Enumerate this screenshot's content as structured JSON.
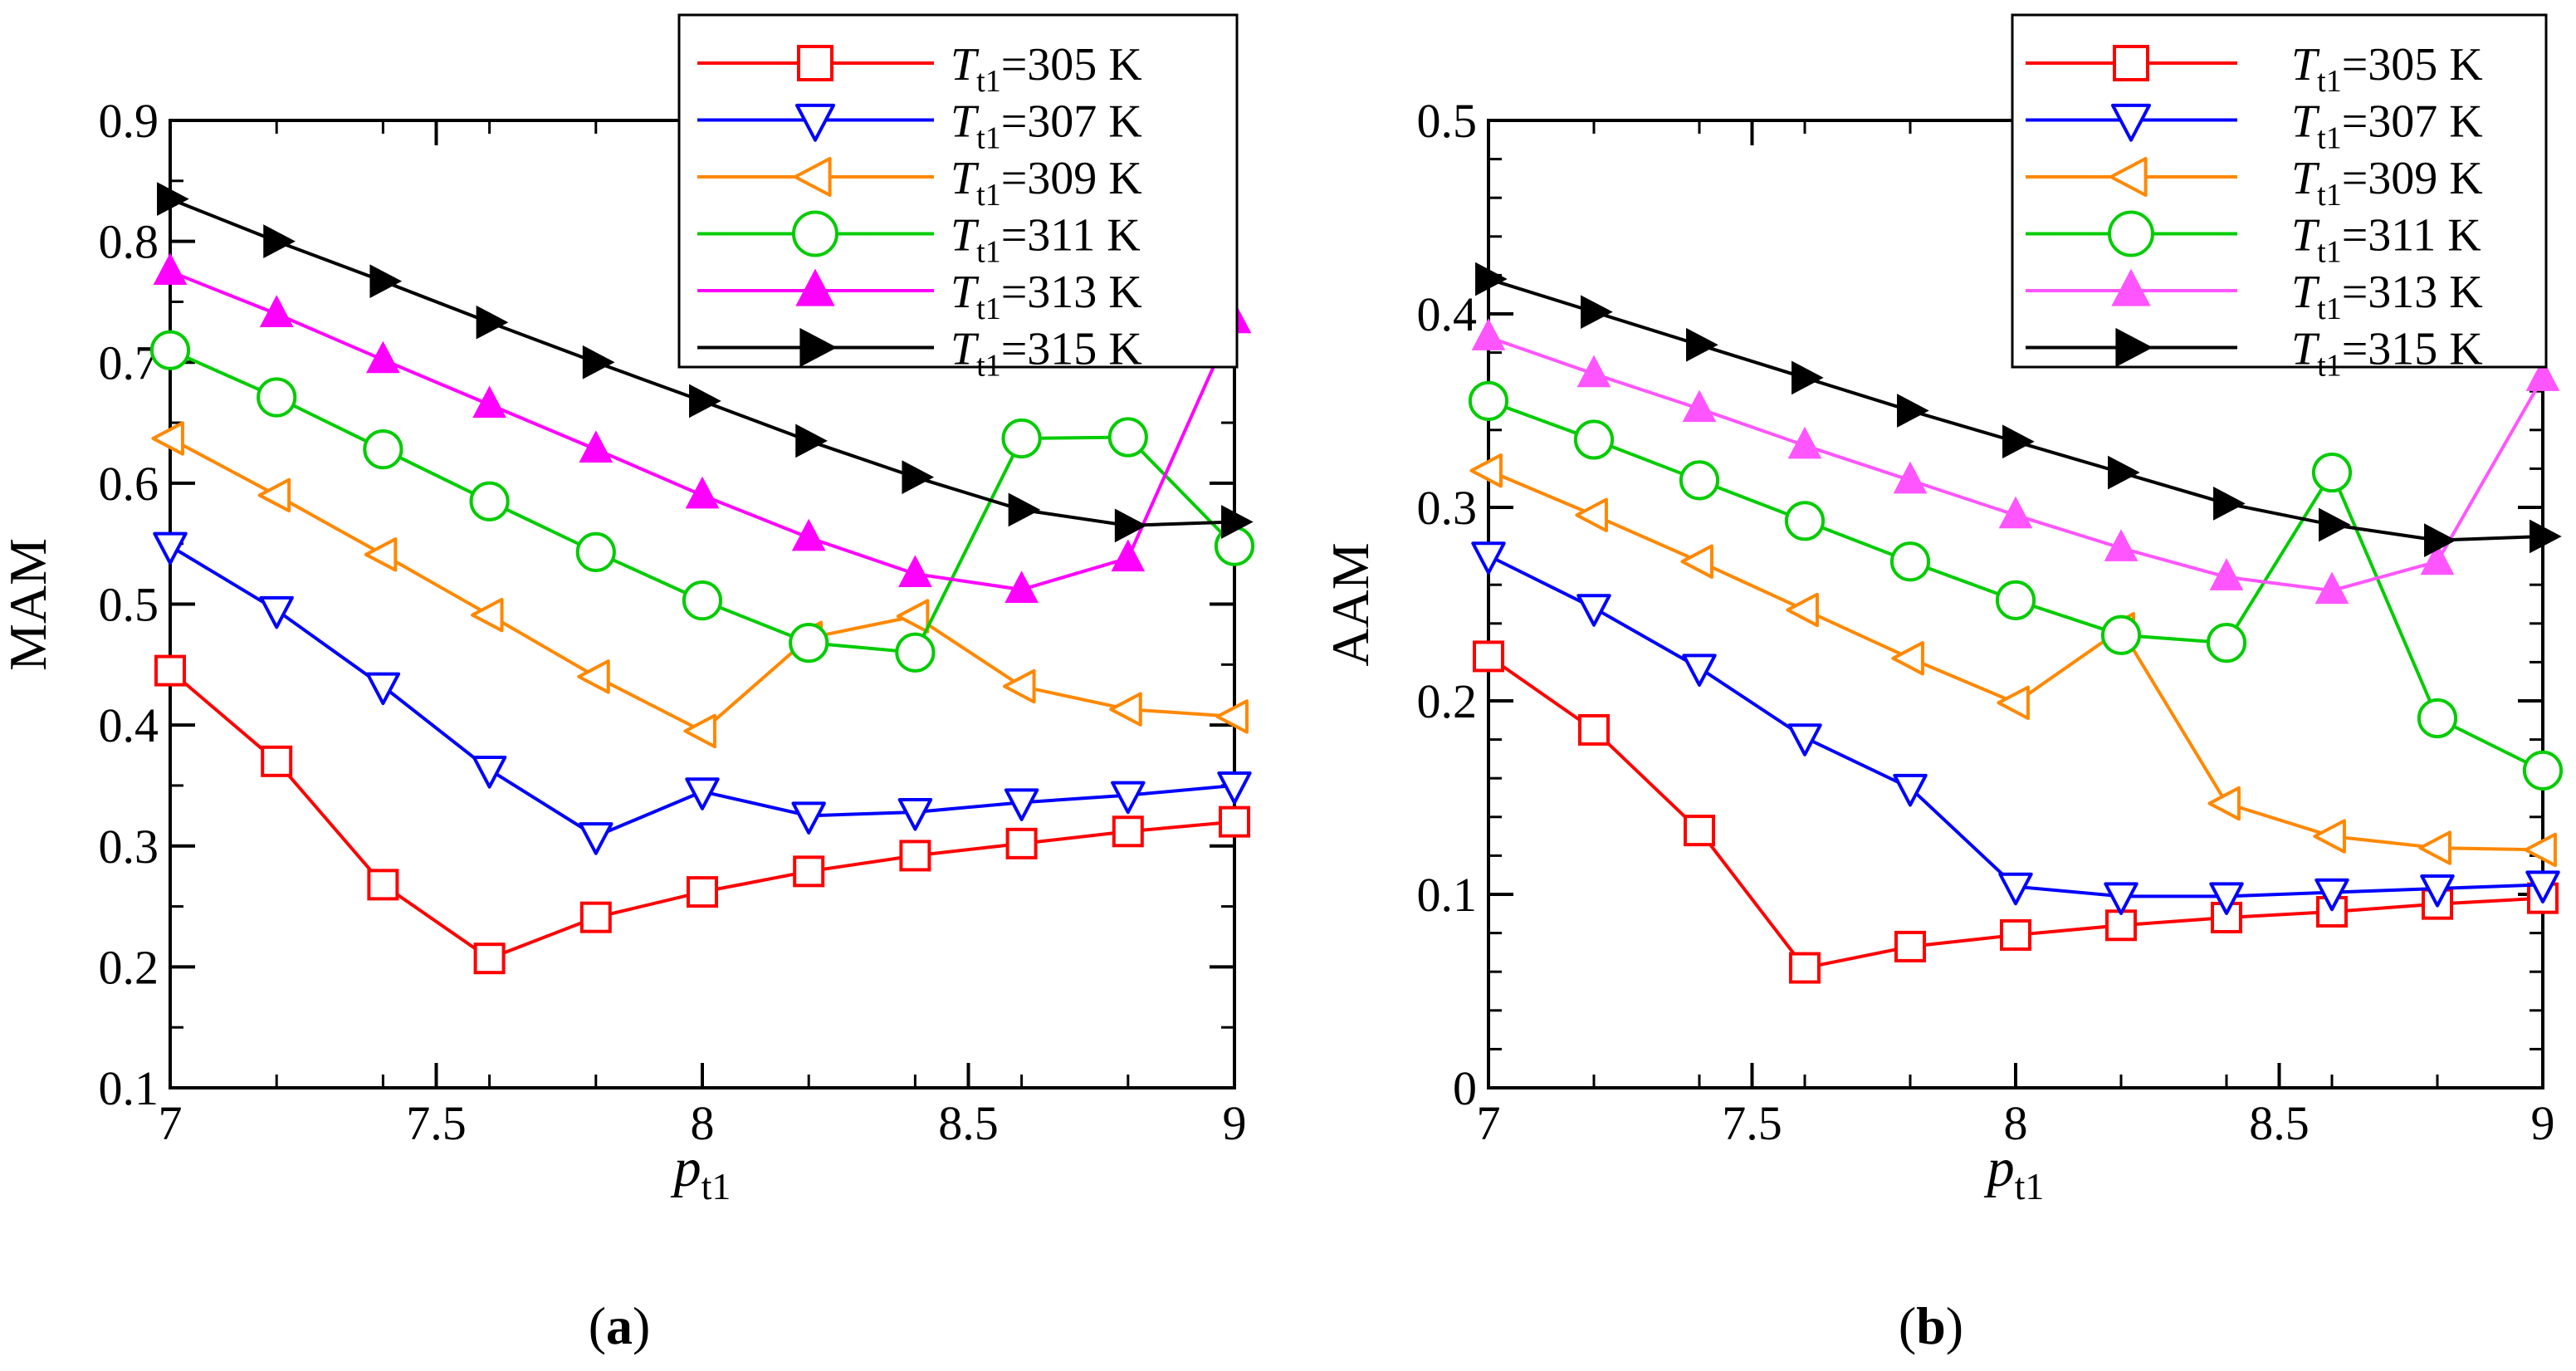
{
  "x_categories": [
    "7",
    "7.2",
    "7.4",
    "7.6",
    "7.8",
    "8",
    "8.2",
    "8.4",
    "8.6",
    "8.8",
    "9"
  ],
  "x_tick_labels": [
    "7",
    "7.5",
    "8",
    "8.5",
    "9"
  ],
  "colors": {
    "305": "#ff0000",
    "307": "#0000ff",
    "309": "#ff8800",
    "311": "#00cc00",
    "313_a": "#ff00ff",
    "313_b": "#ff55ff",
    "315": "#000000"
  },
  "chart_data": [
    {
      "type": "line",
      "panel_label": "a",
      "title": "",
      "xlabel": "p",
      "xlabel_sub": "t1",
      "ylabel": "MAM",
      "xlim": [
        7,
        9
      ],
      "ylim": [
        0.1,
        0.9
      ],
      "y_ticks": [
        "0.1",
        "0.2",
        "0.3",
        "0.4",
        "0.5",
        "0.6",
        "0.7",
        "0.8",
        "0.9"
      ],
      "x": [
        7,
        7.2,
        7.4,
        7.6,
        7.8,
        8,
        8.2,
        8.4,
        8.6,
        8.8,
        9
      ],
      "legend_position": "top-right",
      "series": [
        {
          "name": "T",
          "name_sub": "t1",
          "name_tail": "=305 K",
          "marker": "square",
          "color_key": "305",
          "values": [
            0.445,
            0.37,
            0.268,
            0.207,
            0.241,
            0.262,
            0.279,
            0.292,
            0.302,
            0.312,
            0.32
          ]
        },
        {
          "name": "T",
          "name_sub": "t1",
          "name_tail": "=307 K",
          "marker": "triangle-down",
          "color_key": "307",
          "values": [
            0.548,
            0.495,
            0.432,
            0.363,
            0.308,
            0.345,
            0.325,
            0.328,
            0.336,
            0.342,
            0.35
          ]
        },
        {
          "name": "T",
          "name_sub": "t1",
          "name_tail": "=309 K",
          "marker": "triangle-left",
          "color_key": "309",
          "values": [
            0.637,
            0.59,
            0.541,
            0.491,
            0.44,
            0.395,
            0.472,
            0.49,
            0.432,
            0.413,
            0.407
          ]
        },
        {
          "name": "T",
          "name_sub": "t1",
          "name_tail": "=311 K",
          "marker": "circle",
          "color_key": "311",
          "values": [
            0.71,
            0.671,
            0.628,
            0.585,
            0.543,
            0.503,
            0.468,
            0.46,
            0.637,
            0.638,
            0.548
          ]
        },
        {
          "name": "T",
          "name_sub": "t1",
          "name_tail": "=313 K",
          "marker": "triangle-up-filled",
          "color_key": "313_a",
          "values": [
            0.775,
            0.74,
            0.702,
            0.665,
            0.628,
            0.59,
            0.555,
            0.525,
            0.512,
            0.538,
            0.735
          ]
        },
        {
          "name": "T",
          "name_sub": "t1",
          "name_tail": "=315 K",
          "marker": "triangle-right-filled",
          "color_key": "315",
          "values": [
            0.835,
            0.8,
            0.767,
            0.733,
            0.7,
            0.668,
            0.635,
            0.605,
            0.578,
            0.565,
            0.568
          ]
        }
      ]
    },
    {
      "type": "line",
      "panel_label": "b",
      "title": "",
      "xlabel": "p",
      "xlabel_sub": "t1",
      "ylabel": "AAM",
      "xlim": [
        7,
        9
      ],
      "ylim": [
        0,
        0.5
      ],
      "y_ticks": [
        "0",
        "0.1",
        "0.2",
        "0.3",
        "0.4",
        "0.5"
      ],
      "x": [
        7,
        7.2,
        7.4,
        7.6,
        7.8,
        8,
        8.2,
        8.4,
        8.6,
        8.8,
        9
      ],
      "legend_position": "top-right",
      "series": [
        {
          "name": "T",
          "name_sub": "t1",
          "name_tail": "=305 K",
          "marker": "square",
          "color_key": "305",
          "values": [
            0.223,
            0.185,
            0.133,
            0.062,
            0.073,
            0.079,
            0.084,
            0.088,
            0.091,
            0.095,
            0.098
          ]
        },
        {
          "name": "T",
          "name_sub": "t1",
          "name_tail": "=307 K",
          "marker": "triangle-down",
          "color_key": "307",
          "values": [
            0.275,
            0.248,
            0.217,
            0.181,
            0.155,
            0.104,
            0.099,
            0.099,
            0.101,
            0.103,
            0.105
          ]
        },
        {
          "name": "T",
          "name_sub": "t1",
          "name_tail": "=309 K",
          "marker": "triangle-left",
          "color_key": "309",
          "values": [
            0.319,
            0.296,
            0.272,
            0.247,
            0.222,
            0.199,
            0.237,
            0.147,
            0.13,
            0.124,
            0.123
          ]
        },
        {
          "name": "T",
          "name_sub": "t1",
          "name_tail": "=311 K",
          "marker": "circle",
          "color_key": "311",
          "values": [
            0.355,
            0.335,
            0.314,
            0.293,
            0.272,
            0.252,
            0.234,
            0.23,
            0.318,
            0.191,
            0.164
          ]
        },
        {
          "name": "T",
          "name_sub": "t1",
          "name_tail": "=313 K",
          "marker": "triangle-up-filled",
          "color_key": "313_b",
          "values": [
            0.388,
            0.369,
            0.351,
            0.332,
            0.314,
            0.296,
            0.279,
            0.264,
            0.257,
            0.272,
            0.367
          ]
        },
        {
          "name": "T",
          "name_sub": "t1",
          "name_tail": "=315 K",
          "marker": "triangle-right-filled",
          "color_key": "315",
          "values": [
            0.418,
            0.401,
            0.384,
            0.367,
            0.35,
            0.334,
            0.318,
            0.302,
            0.291,
            0.283,
            0.285
          ]
        }
      ]
    }
  ]
}
